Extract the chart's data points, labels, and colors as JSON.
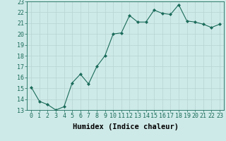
{
  "x": [
    0,
    1,
    2,
    3,
    4,
    5,
    6,
    7,
    8,
    9,
    10,
    11,
    12,
    13,
    14,
    15,
    16,
    17,
    18,
    19,
    20,
    21,
    22,
    23
  ],
  "y": [
    15.1,
    13.8,
    13.5,
    13.0,
    13.3,
    15.5,
    16.3,
    15.4,
    17.0,
    18.0,
    20.0,
    20.1,
    21.7,
    21.1,
    21.1,
    22.2,
    21.9,
    21.8,
    22.7,
    21.2,
    21.1,
    20.9,
    20.6,
    20.9
  ],
  "line_color": "#1a6b5a",
  "marker": "D",
  "marker_size": 2.0,
  "bg_color": "#ceeae8",
  "grid_color": "#b8d4d2",
  "xlabel": "Humidex (Indice chaleur)",
  "ylim": [
    13,
    23
  ],
  "xlim": [
    -0.5,
    23.5
  ],
  "yticks": [
    13,
    14,
    15,
    16,
    17,
    18,
    19,
    20,
    21,
    22,
    23
  ],
  "xticks": [
    0,
    1,
    2,
    3,
    4,
    5,
    6,
    7,
    8,
    9,
    10,
    11,
    12,
    13,
    14,
    15,
    16,
    17,
    18,
    19,
    20,
    21,
    22,
    23
  ],
  "xlabel_fontsize": 7.5,
  "tick_fontsize": 6.0
}
